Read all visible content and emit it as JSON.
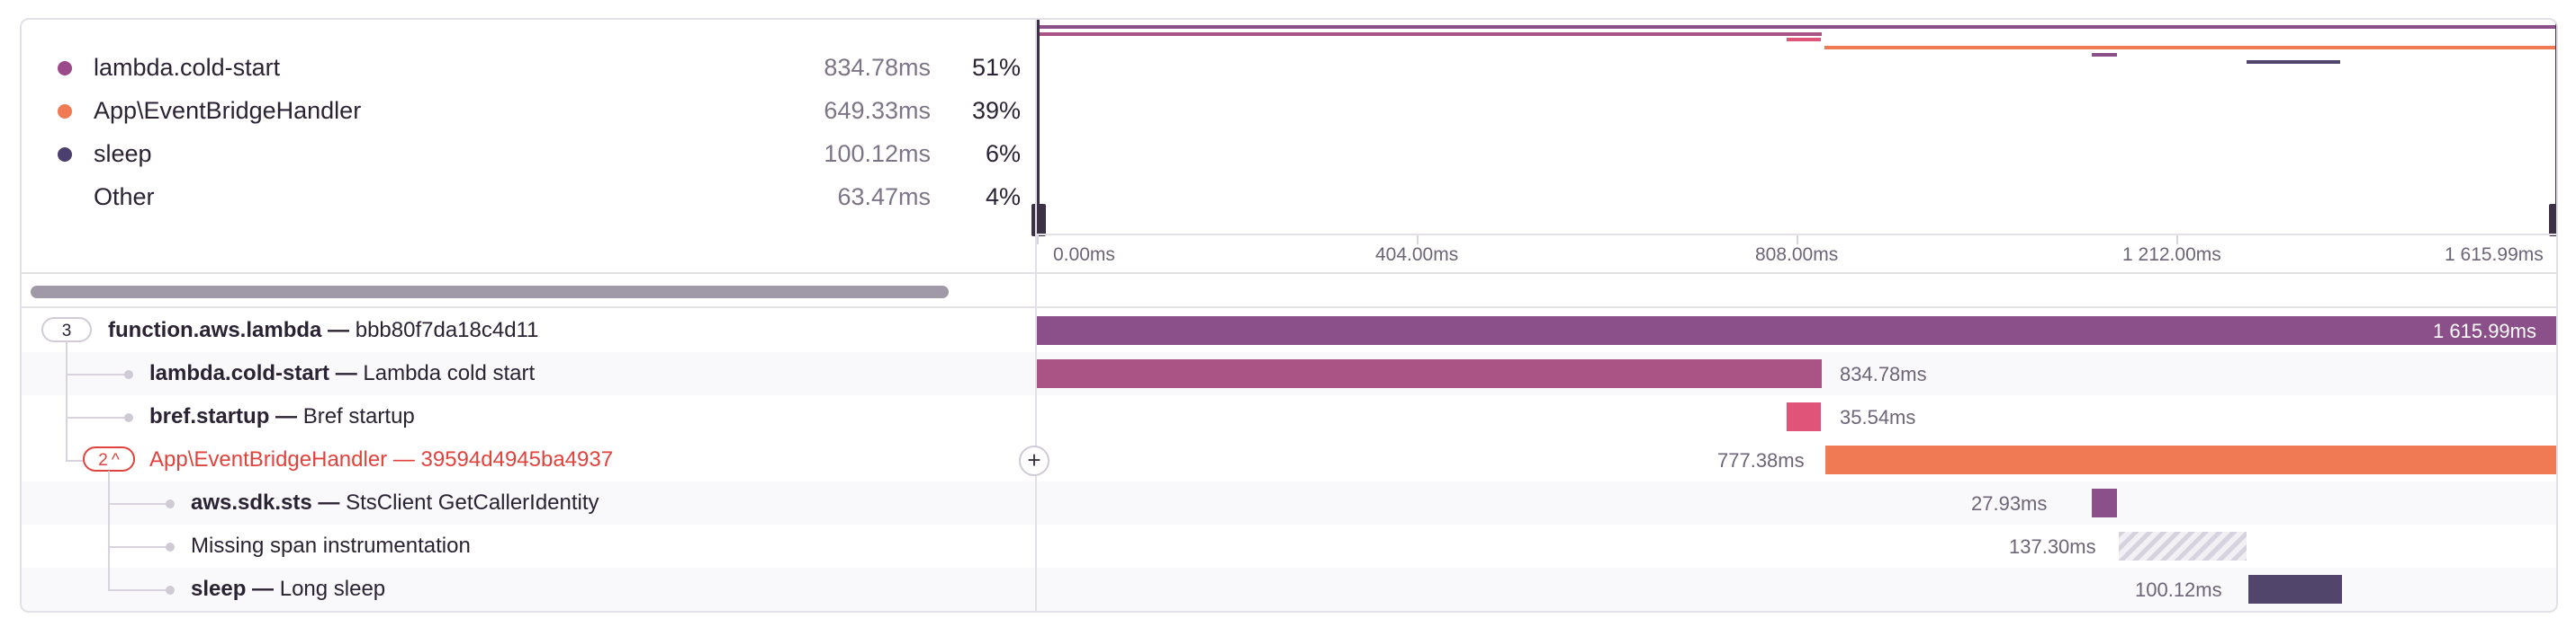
{
  "legend": [
    {
      "label": "lambda.cold-start",
      "duration": "834.78ms",
      "percent": "51%",
      "color": "#9b4a8a"
    },
    {
      "label": "App\\EventBridgeHandler",
      "duration": "649.33ms",
      "percent": "39%",
      "color": "#f07a54"
    },
    {
      "label": "sleep",
      "duration": "100.12ms",
      "percent": "6%",
      "color": "#4a3f6e"
    },
    {
      "label": "Other",
      "duration": "63.47ms",
      "percent": "4%",
      "color": ""
    }
  ],
  "ruler": {
    "ticks": [
      "0.00ms",
      "404.00ms",
      "808.00ms",
      "1 212.00ms",
      "1 615.99ms"
    ]
  },
  "spans": [
    {
      "op": "function.aws.lambda",
      "separator": " — ",
      "description": "bbb80f7da18c4d11",
      "child_count": "3",
      "duration": "1 615.99ms",
      "color": "#8b4f8a",
      "error": false
    },
    {
      "op": "lambda.cold-start",
      "separator": " — ",
      "description": "Lambda cold start",
      "duration": "834.78ms",
      "color": "#a95485",
      "error": false
    },
    {
      "op": "bref.startup",
      "separator": " — ",
      "description": "Bref startup",
      "duration": "35.54ms",
      "color": "#df5478",
      "error": false
    },
    {
      "op": "App\\EventBridgeHandler",
      "separator": " — ",
      "description": "39594d4945ba4937",
      "child_count": "2",
      "duration": "777.38ms",
      "color": "#f07a54",
      "error": true
    },
    {
      "op": "aws.sdk.sts",
      "separator": " — ",
      "description": "StsClient GetCallerIdentity",
      "duration": "27.93ms",
      "color": "#8b4f8a",
      "error": false
    },
    {
      "op": "",
      "separator": "",
      "description": "Missing span instrumentation",
      "duration": "137.30ms",
      "color": "",
      "error": false
    },
    {
      "op": "sleep",
      "separator": " — ",
      "description": "Long sleep",
      "duration": "100.12ms",
      "color": "#52456b",
      "error": false
    }
  ],
  "icons": {
    "chevron": "chevron-up-icon",
    "add": "plus-icon"
  },
  "glyphs": {
    "chevron": "^",
    "add": "+"
  }
}
